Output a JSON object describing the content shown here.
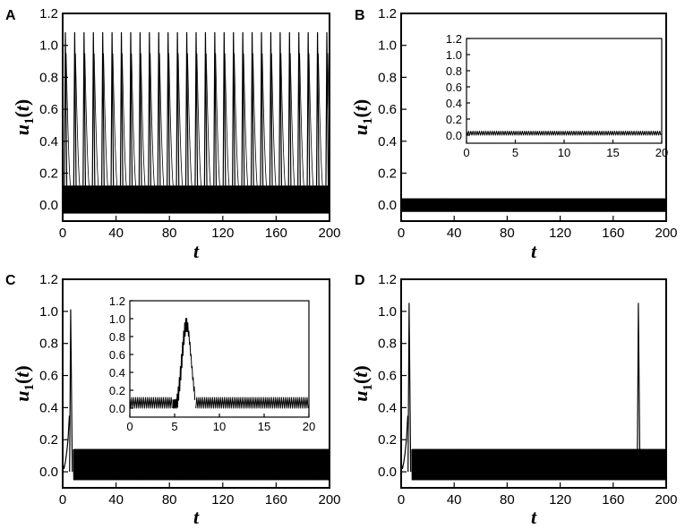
{
  "figure": {
    "panels": [
      {
        "letter": "A"
      },
      {
        "letter": "B"
      },
      {
        "letter": "C"
      },
      {
        "letter": "D"
      }
    ]
  },
  "chart_data": [
    {
      "panel": "A",
      "type": "line",
      "xlabel": "t",
      "ylabel": "u1(t)",
      "xlim": [
        0,
        200
      ],
      "ylim": [
        -0.1,
        1.2
      ],
      "xticks": [
        "0",
        "40",
        "80",
        "120",
        "160",
        "200"
      ],
      "yticks": [
        "0.0",
        "0.2",
        "0.4",
        "0.6",
        "0.8",
        "1.0",
        "1.2"
      ],
      "pattern": "periodic bursting",
      "spike_times": [
        2,
        9,
        16,
        23,
        30,
        37,
        44,
        51,
        58,
        65,
        72,
        79,
        86,
        93,
        100,
        107,
        114,
        121,
        128,
        135,
        142,
        149,
        156,
        163,
        170,
        177,
        184,
        191,
        198
      ],
      "spike_peak": 1.08,
      "subthreshold_band": [
        -0.05,
        0.12
      ]
    },
    {
      "panel": "B",
      "type": "line",
      "xlabel": "t",
      "ylabel": "u1(t)",
      "xlim": [
        0,
        200
      ],
      "ylim": [
        -0.1,
        1.2
      ],
      "xticks": [
        "0",
        "40",
        "80",
        "120",
        "160",
        "200"
      ],
      "yticks": [
        "0.0",
        "0.2",
        "0.4",
        "0.6",
        "0.8",
        "1.0",
        "1.2"
      ],
      "pattern": "subthreshold oscillation",
      "spike_times": [],
      "subthreshold_band": [
        -0.04,
        0.04
      ],
      "inset": {
        "xlim": [
          0,
          20
        ],
        "ylim": [
          -0.1,
          1.2
        ],
        "xticks": [
          "0",
          "5",
          "10",
          "15",
          "20"
        ],
        "yticks": [
          "0.0",
          "0.2",
          "0.4",
          "0.6",
          "0.8",
          "1.0",
          "1.2"
        ],
        "spike_times": [],
        "band": [
          0.0,
          0.05
        ]
      }
    },
    {
      "panel": "C",
      "type": "line",
      "xlabel": "t",
      "ylabel": "u1(t)",
      "xlim": [
        0,
        200
      ],
      "ylim": [
        -0.1,
        1.2
      ],
      "xticks": [
        "0",
        "40",
        "80",
        "120",
        "160",
        "200"
      ],
      "yticks": [
        "0.0",
        "0.2",
        "0.4",
        "0.6",
        "0.8",
        "1.0",
        "1.2"
      ],
      "pattern": "single spike then oscillation",
      "spike_times": [
        6
      ],
      "spike_peak": 1.01,
      "subthreshold_band": [
        -0.05,
        0.14
      ],
      "inset": {
        "xlim": [
          0,
          20
        ],
        "ylim": [
          -0.1,
          1.2
        ],
        "xticks": [
          "0",
          "5",
          "10",
          "15",
          "20"
        ],
        "yticks": [
          "0.0",
          "0.2",
          "0.4",
          "0.6",
          "0.8",
          "1.0",
          "1.2"
        ],
        "spike_times": [
          6.3
        ],
        "spike_peak": 1.01,
        "band": [
          0.0,
          0.12
        ]
      }
    },
    {
      "panel": "D",
      "type": "line",
      "xlabel": "t",
      "ylabel": "u1(t)",
      "xlim": [
        0,
        200
      ],
      "ylim": [
        -0.1,
        1.2
      ],
      "xticks": [
        "0",
        "40",
        "80",
        "120",
        "160",
        "200"
      ],
      "yticks": [
        "0.0",
        "0.2",
        "0.4",
        "0.6",
        "0.8",
        "1.0",
        "1.2"
      ],
      "pattern": "two spikes with oscillation",
      "spike_times": [
        6,
        179
      ],
      "spike_peak": 1.05,
      "subthreshold_band": [
        -0.05,
        0.14
      ]
    }
  ]
}
